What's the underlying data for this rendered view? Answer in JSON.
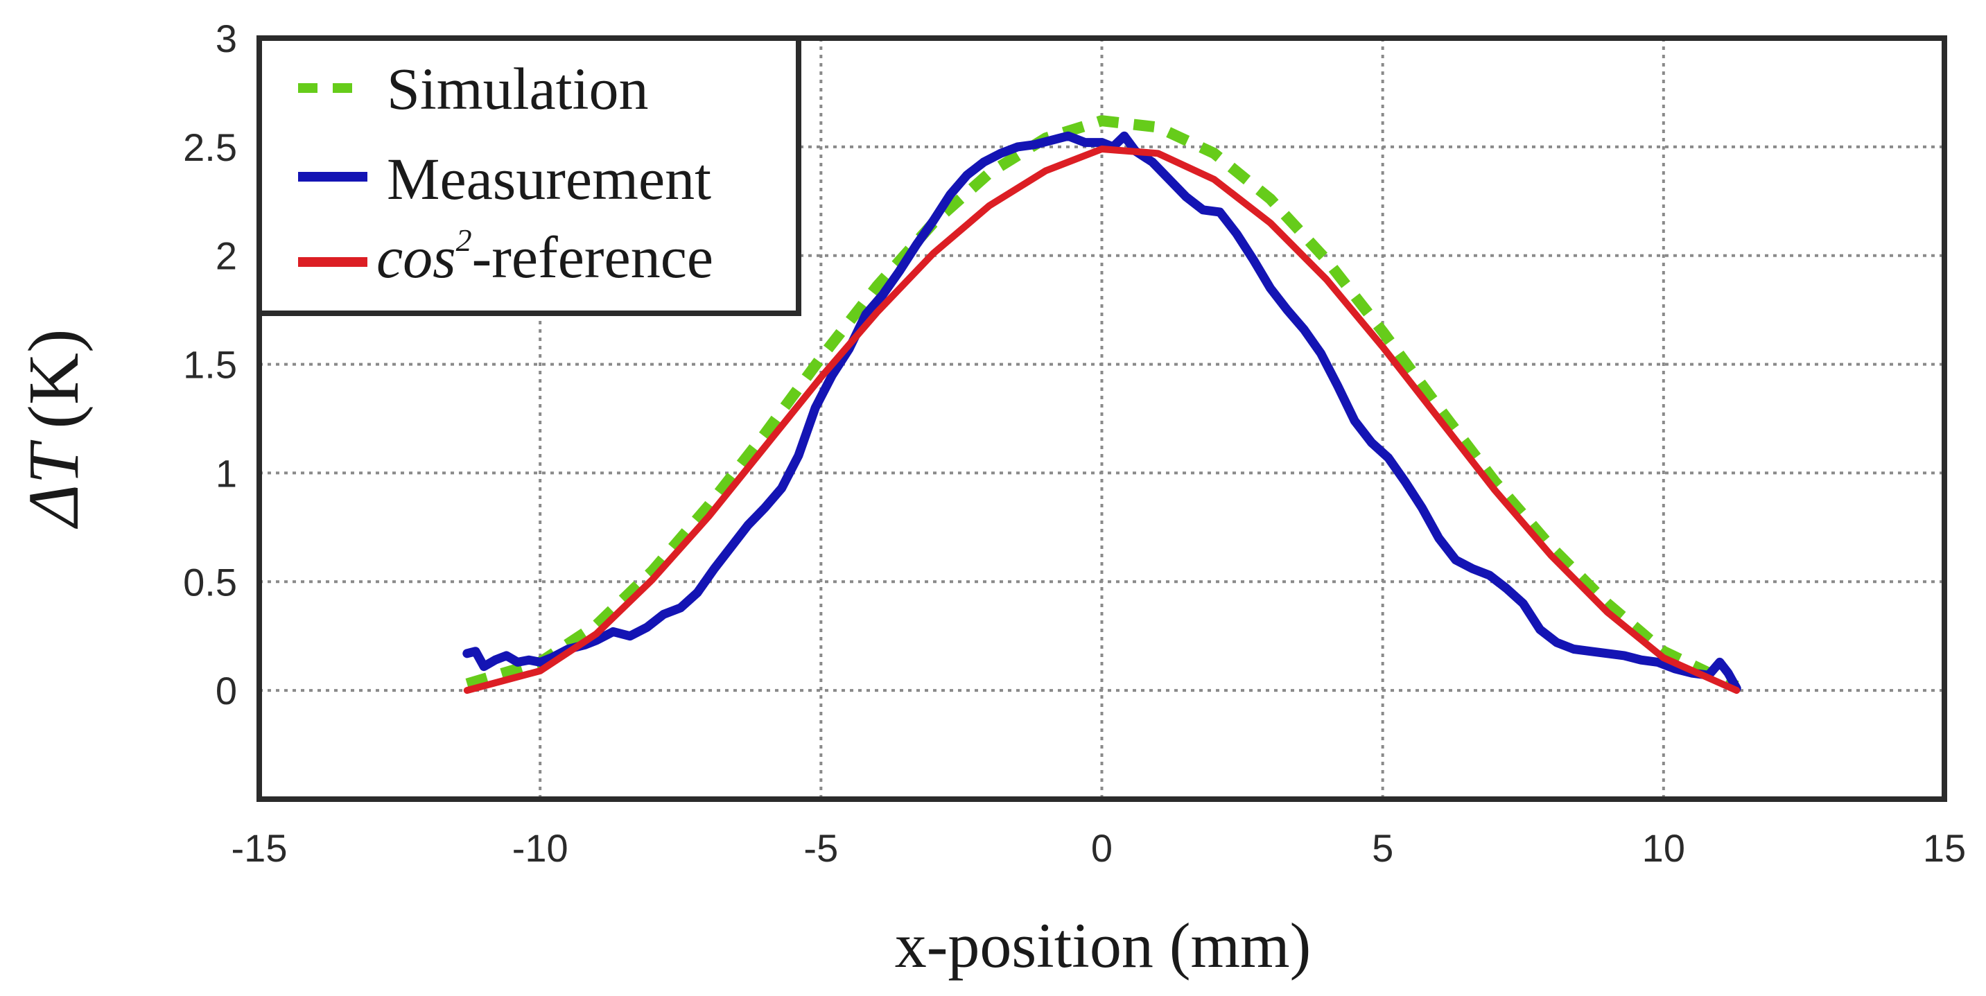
{
  "chart_data": {
    "type": "line",
    "title": "",
    "xlabel": "x-position (mm)",
    "ylabel": {
      "symbol": "ΔT",
      "unit": "(K)"
    },
    "xlim": [
      -15,
      15
    ],
    "ylim": [
      -0.5,
      3
    ],
    "xticks": [
      -15,
      -10,
      -5,
      0,
      5,
      10,
      15
    ],
    "xtick_labels": [
      "-15",
      "-10",
      "-5",
      "0",
      "5",
      "10",
      "15"
    ],
    "yticks": [
      0,
      0.5,
      1,
      1.5,
      2,
      2.5,
      3
    ],
    "ytick_labels": [
      "0",
      "0.5",
      "1",
      "1.5",
      "2",
      "2.5",
      "3"
    ],
    "grid": true,
    "legend": {
      "position": "top-left",
      "entries": [
        {
          "label": "Simulation",
          "series": "simulation"
        },
        {
          "label": "Measurement",
          "series": "measurement"
        },
        {
          "label_main": "cos",
          "label_sup": "2",
          "label_rest": "-reference",
          "series": "reference"
        }
      ]
    },
    "series": [
      {
        "id": "simulation",
        "name": "Simulation",
        "color": "#66cc1a",
        "style": "dashed",
        "x": [
          -11.3,
          -10,
          -9,
          -8,
          -7,
          -6,
          -5,
          -4,
          -3,
          -2,
          -1,
          0,
          1,
          2,
          3,
          4,
          5,
          6,
          7,
          8,
          9,
          10,
          11.3
        ],
        "y": [
          0.03,
          0.13,
          0.3,
          0.55,
          0.85,
          1.18,
          1.53,
          1.86,
          2.15,
          2.38,
          2.54,
          2.62,
          2.59,
          2.47,
          2.26,
          1.98,
          1.65,
          1.3,
          0.96,
          0.66,
          0.4,
          0.18,
          0.02
        ]
      },
      {
        "id": "measurement",
        "name": "Measurement",
        "color": "#1414b4",
        "style": "solid",
        "x": [
          -11.3,
          -11.15,
          -11.0,
          -10.8,
          -10.6,
          -10.4,
          -10.2,
          -10.0,
          -9.8,
          -9.5,
          -9.2,
          -9.0,
          -8.7,
          -8.4,
          -8.1,
          -7.8,
          -7.5,
          -7.2,
          -6.9,
          -6.6,
          -6.3,
          -6.0,
          -5.7,
          -5.4,
          -5.1,
          -4.8,
          -4.5,
          -4.2,
          -3.9,
          -3.6,
          -3.3,
          -3.0,
          -2.7,
          -2.4,
          -2.1,
          -1.8,
          -1.5,
          -1.2,
          -0.9,
          -0.6,
          -0.3,
          0.0,
          0.2,
          0.4,
          0.6,
          0.9,
          1.2,
          1.5,
          1.8,
          2.1,
          2.4,
          2.7,
          3.0,
          3.3,
          3.6,
          3.9,
          4.2,
          4.5,
          4.8,
          5.1,
          5.4,
          5.7,
          6.0,
          6.3,
          6.6,
          6.9,
          7.2,
          7.5,
          7.8,
          8.1,
          8.4,
          8.7,
          9.0,
          9.3,
          9.6,
          9.9,
          10.2,
          10.5,
          10.8,
          11.0,
          11.15,
          11.3
        ],
        "y": [
          0.17,
          0.18,
          0.11,
          0.14,
          0.16,
          0.13,
          0.14,
          0.13,
          0.15,
          0.19,
          0.21,
          0.23,
          0.27,
          0.25,
          0.29,
          0.35,
          0.38,
          0.45,
          0.56,
          0.66,
          0.76,
          0.84,
          0.93,
          1.08,
          1.3,
          1.45,
          1.57,
          1.73,
          1.82,
          1.93,
          2.05,
          2.16,
          2.28,
          2.37,
          2.43,
          2.47,
          2.5,
          2.51,
          2.53,
          2.55,
          2.52,
          2.52,
          2.5,
          2.55,
          2.48,
          2.43,
          2.35,
          2.27,
          2.21,
          2.2,
          2.1,
          1.98,
          1.85,
          1.75,
          1.66,
          1.55,
          1.4,
          1.24,
          1.14,
          1.07,
          0.96,
          0.84,
          0.7,
          0.6,
          0.56,
          0.53,
          0.47,
          0.4,
          0.28,
          0.22,
          0.19,
          0.18,
          0.17,
          0.16,
          0.14,
          0.13,
          0.1,
          0.08,
          0.07,
          0.13,
          0.08,
          0.01
        ]
      },
      {
        "id": "reference",
        "name": "cos²-reference",
        "color": "#dc1e24",
        "style": "solid",
        "x": [
          -11.3,
          -10,
          -9,
          -8,
          -7,
          -6,
          -5,
          -4,
          -3,
          -2,
          -1,
          0,
          1,
          2,
          3,
          4,
          5,
          6,
          7,
          8,
          9,
          10,
          11.3
        ],
        "y": [
          0.0,
          0.09,
          0.26,
          0.51,
          0.8,
          1.12,
          1.44,
          1.74,
          2.01,
          2.23,
          2.39,
          2.49,
          2.47,
          2.35,
          2.15,
          1.89,
          1.58,
          1.25,
          0.92,
          0.62,
          0.36,
          0.15,
          0.0
        ]
      }
    ]
  }
}
